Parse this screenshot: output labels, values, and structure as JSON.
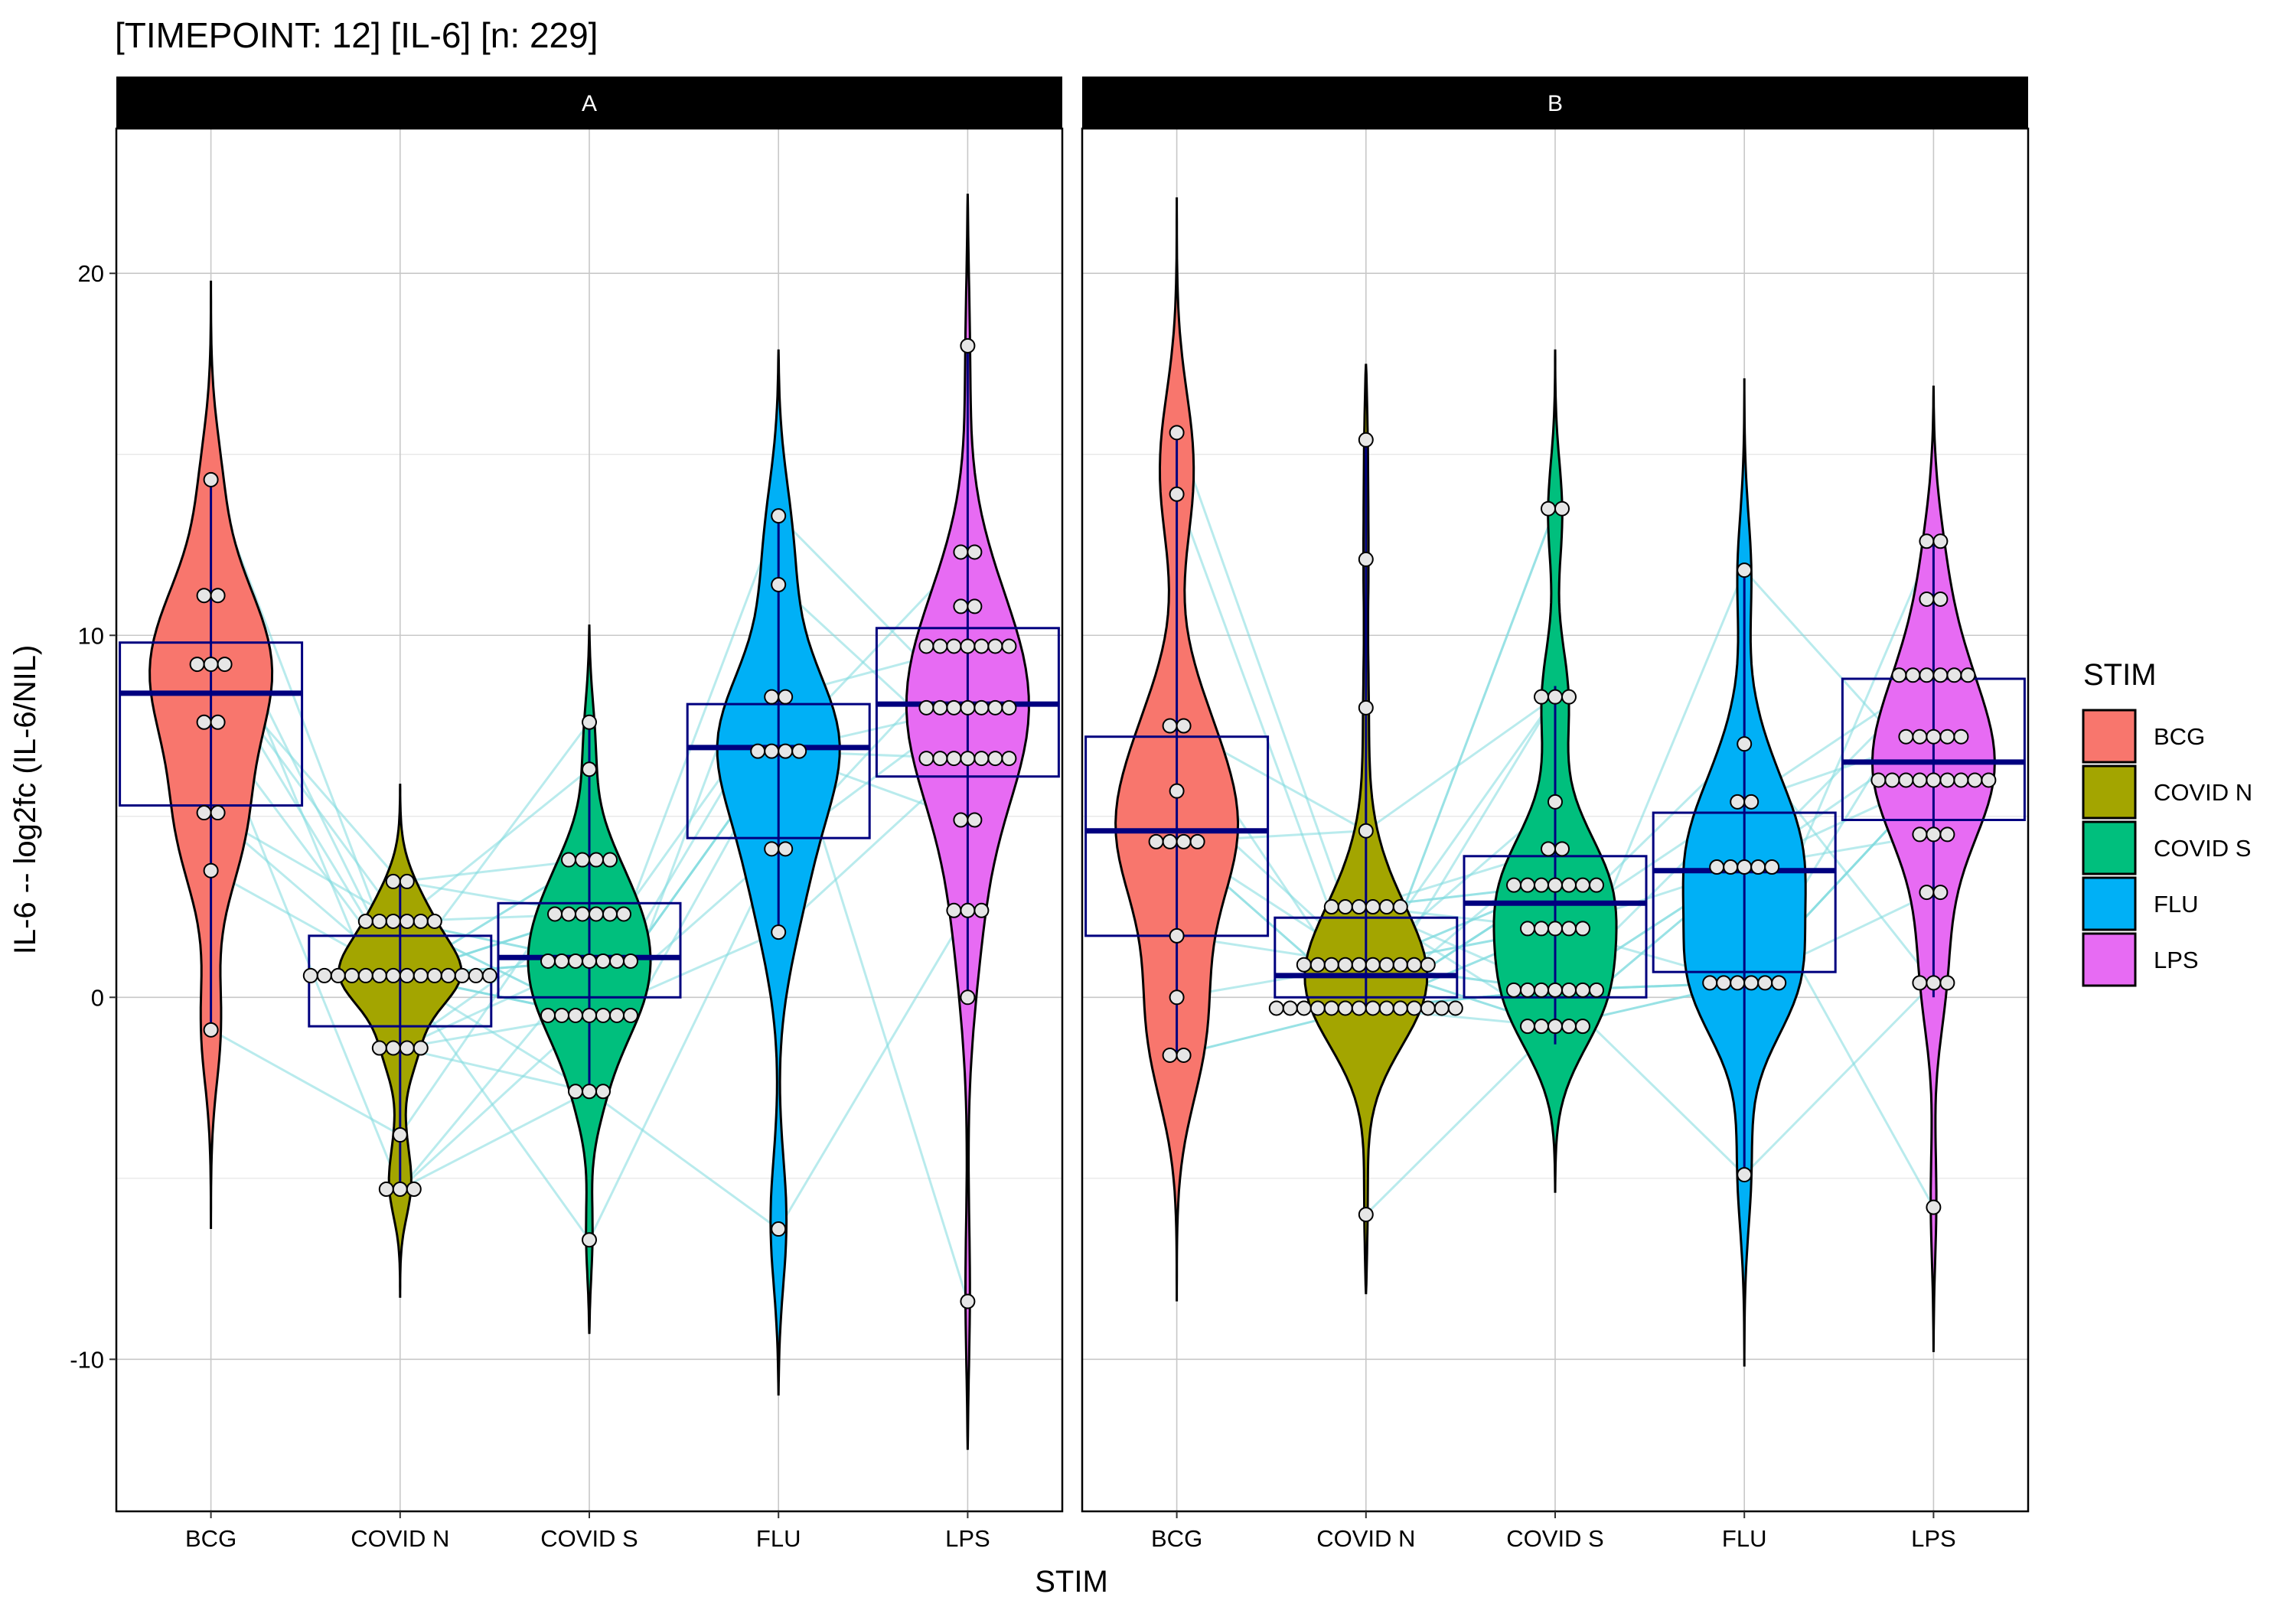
{
  "chart_data": {
    "type": "violin",
    "title": "[TIMEPOINT: 12]  [IL-6]  [n: 229]",
    "xlabel": "STIM",
    "ylabel": "IL-6 -- log2fc (IL-6/NIL)",
    "ylim": [
      -14.2,
      24.0
    ],
    "yticks": [
      -10,
      0,
      10,
      20
    ],
    "grid": true,
    "categories": [
      "BCG",
      "COVID N",
      "COVID S",
      "FLU",
      "LPS"
    ],
    "colors": {
      "BCG": "#F8766D",
      "COVID N": "#A3A500",
      "COVID S": "#00BF7D",
      "FLU": "#00B0F6",
      "LPS": "#E76BF3",
      "box": "#00007F",
      "paired_line": "#7FDBDE"
    },
    "legend": {
      "title": "STIM",
      "position": "right",
      "items": [
        "BCG",
        "COVID N",
        "COVID S",
        "FLU",
        "LPS"
      ]
    },
    "panels": [
      {
        "label": "A",
        "groups": [
          {
            "stim": "BCG",
            "violin_range": [
              -6.4,
              19.8
            ],
            "box": {
              "q1": 5.3,
              "median": 8.4,
              "q3": 9.8
            },
            "whisker": [
              -0.9,
              14.3
            ],
            "points": [
              14.3,
              11.1,
              11.1,
              9.2,
              9.2,
              9.2,
              7.6,
              7.6,
              5.1,
              5.1,
              3.5,
              -0.9
            ]
          },
          {
            "stim": "COVID N",
            "violin_range": [
              -8.3,
              5.9
            ],
            "box": {
              "q1": -0.8,
              "median": 0.6,
              "q3": 1.7
            },
            "whisker": [
              -5.3,
              3.2
            ],
            "points": [
              3.2,
              3.2,
              2.1,
              2.1,
              2.1,
              2.1,
              2.1,
              2.1,
              0.6,
              0.6,
              0.6,
              0.6,
              0.6,
              0.6,
              0.6,
              0.6,
              0.6,
              0.6,
              0.6,
              0.6,
              0.6,
              0.6,
              -1.4,
              -1.4,
              -1.4,
              -1.4,
              -3.8,
              -5.3,
              -5.3,
              -5.3
            ]
          },
          {
            "stim": "COVID S",
            "violin_range": [
              -9.3,
              10.3
            ],
            "box": {
              "q1": 0.0,
              "median": 1.1,
              "q3": 2.6
            },
            "whisker": [
              -2.6,
              7.6
            ],
            "points": [
              7.6,
              6.3,
              3.8,
              3.8,
              3.8,
              3.8,
              2.3,
              2.3,
              2.3,
              2.3,
              2.3,
              2.3,
              1.0,
              1.0,
              1.0,
              1.0,
              1.0,
              1.0,
              1.0,
              -0.5,
              -0.5,
              -0.5,
              -0.5,
              -0.5,
              -0.5,
              -0.5,
              -2.6,
              -2.6,
              -2.6,
              -6.7
            ]
          },
          {
            "stim": "FLU",
            "violin_range": [
              -11.0,
              17.9
            ],
            "box": {
              "q1": 4.4,
              "median": 6.9,
              "q3": 8.1
            },
            "whisker": [
              1.8,
              13.3
            ],
            "points": [
              13.3,
              11.4,
              8.3,
              8.3,
              6.8,
              6.8,
              6.8,
              6.8,
              4.1,
              4.1,
              1.8,
              -6.4
            ]
          },
          {
            "stim": "LPS",
            "violin_range": [
              -12.5,
              22.2
            ],
            "box": {
              "q1": 6.1,
              "median": 8.1,
              "q3": 10.2
            },
            "whisker": [
              0.0,
              18.0
            ],
            "points": [
              18.0,
              12.3,
              12.3,
              10.8,
              10.8,
              9.7,
              9.7,
              9.7,
              9.7,
              9.7,
              9.7,
              9.7,
              8.0,
              8.0,
              8.0,
              8.0,
              8.0,
              8.0,
              8.0,
              6.6,
              6.6,
              6.6,
              6.6,
              6.6,
              6.6,
              6.6,
              4.9,
              4.9,
              2.4,
              2.4,
              2.4,
              0.0,
              -8.4
            ]
          }
        ]
      },
      {
        "label": "B",
        "groups": [
          {
            "stim": "BCG",
            "violin_range": [
              -8.4,
              22.1
            ],
            "box": {
              "q1": 1.7,
              "median": 4.6,
              "q3": 7.2
            },
            "whisker": [
              -1.6,
              15.6
            ],
            "points": [
              15.6,
              13.9,
              7.5,
              7.5,
              5.7,
              4.3,
              4.3,
              4.3,
              4.3,
              1.7,
              0.0,
              -1.6,
              -1.6
            ]
          },
          {
            "stim": "COVID N",
            "violin_range": [
              -8.2,
              17.5
            ],
            "box": {
              "q1": 0.0,
              "median": 0.6,
              "q3": 2.2
            },
            "whisker": [
              -0.3,
              15.4
            ],
            "points": [
              15.4,
              12.1,
              8.0,
              4.6,
              2.5,
              2.5,
              2.5,
              2.5,
              2.5,
              2.5,
              0.9,
              0.9,
              0.9,
              0.9,
              0.9,
              0.9,
              0.9,
              0.9,
              0.9,
              0.9,
              -0.3,
              -0.3,
              -0.3,
              -0.3,
              -0.3,
              -0.3,
              -0.3,
              -0.3,
              -0.3,
              -0.3,
              -0.3,
              -0.3,
              -0.3,
              -0.3,
              -6.0
            ]
          },
          {
            "stim": "COVID S",
            "violin_range": [
              -5.4,
              17.9
            ],
            "box": {
              "q1": 0.0,
              "median": 2.6,
              "q3": 3.9
            },
            "whisker": [
              -1.3,
              8.6
            ],
            "points": [
              13.5,
              13.5,
              8.3,
              8.3,
              8.3,
              5.4,
              4.1,
              4.1,
              3.1,
              3.1,
              3.1,
              3.1,
              3.1,
              3.1,
              3.1,
              1.9,
              1.9,
              1.9,
              1.9,
              1.9,
              0.2,
              0.2,
              0.2,
              0.2,
              0.2,
              0.2,
              0.2,
              -0.8,
              -0.8,
              -0.8,
              -0.8,
              -0.8
            ]
          },
          {
            "stim": "FLU",
            "violin_range": [
              -10.2,
              17.1
            ],
            "box": {
              "q1": 0.7,
              "median": 3.5,
              "q3": 5.1
            },
            "whisker": [
              -4.9,
              11.8
            ],
            "points": [
              11.8,
              7.0,
              5.4,
              5.4,
              3.6,
              3.6,
              3.6,
              3.6,
              3.6,
              0.4,
              0.4,
              0.4,
              0.4,
              0.4,
              0.4,
              -4.9
            ]
          },
          {
            "stim": "LPS",
            "violin_range": [
              -9.8,
              16.9
            ],
            "box": {
              "q1": 4.9,
              "median": 6.5,
              "q3": 8.8
            },
            "whisker": [
              0.0,
              12.6
            ],
            "points": [
              12.6,
              12.6,
              11.0,
              11.0,
              8.9,
              8.9,
              8.9,
              8.9,
              8.9,
              8.9,
              7.2,
              7.2,
              7.2,
              7.2,
              7.2,
              6.0,
              6.0,
              6.0,
              6.0,
              6.0,
              6.0,
              6.0,
              6.0,
              6.0,
              4.5,
              4.5,
              4.5,
              2.9,
              2.9,
              0.4,
              0.4,
              0.4,
              -5.8
            ]
          }
        ]
      }
    ]
  }
}
